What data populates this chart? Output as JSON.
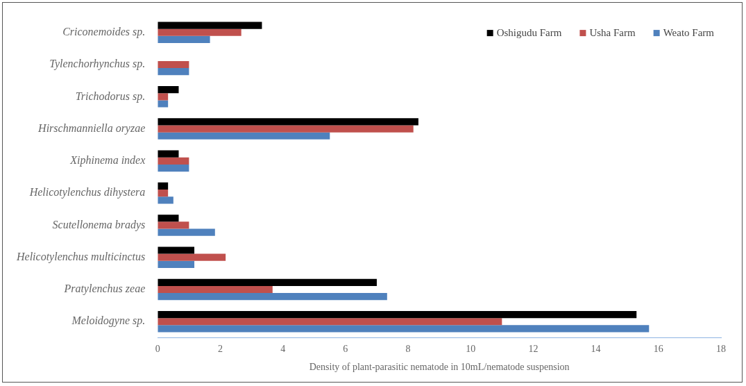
{
  "chart_data": {
    "type": "bar",
    "orientation": "horizontal",
    "xlabel": "Density of plant-parasitic nematode in 10mL/nematode suspension",
    "categories": [
      "Criconemoides sp.",
      "Tylenchorhynchus sp.",
      "Trichodorus sp.",
      "Hirschmanniella oryzae",
      "Xiphinema index",
      "Helicotylenchus dihystera",
      "Scutellonema bradys",
      "Helicotylenchus multicinctus",
      "Pratylenchus zeae",
      "Meloidogyne sp."
    ],
    "series": [
      {
        "name": "Oshigudu Farm",
        "color": "#000000",
        "values": [
          3.33,
          0,
          0.67,
          8.33,
          0.67,
          0.33,
          0.67,
          1.17,
          7.0,
          15.3
        ]
      },
      {
        "name": "Usha Farm",
        "color": "#c0504d",
        "values": [
          2.67,
          1.0,
          0.33,
          8.17,
          1.0,
          0.33,
          1.0,
          2.17,
          3.67,
          11.0
        ]
      },
      {
        "name": "Weato Farm",
        "color": "#4f81bd",
        "values": [
          1.67,
          1.0,
          0.33,
          5.5,
          1.0,
          0.5,
          1.83,
          1.17,
          7.33,
          15.7
        ]
      }
    ],
    "xlim": [
      0,
      18
    ],
    "xticks": [
      0,
      2,
      4,
      6,
      8,
      10,
      12,
      14,
      16,
      18
    ],
    "grid": false,
    "legend": "top right"
  }
}
